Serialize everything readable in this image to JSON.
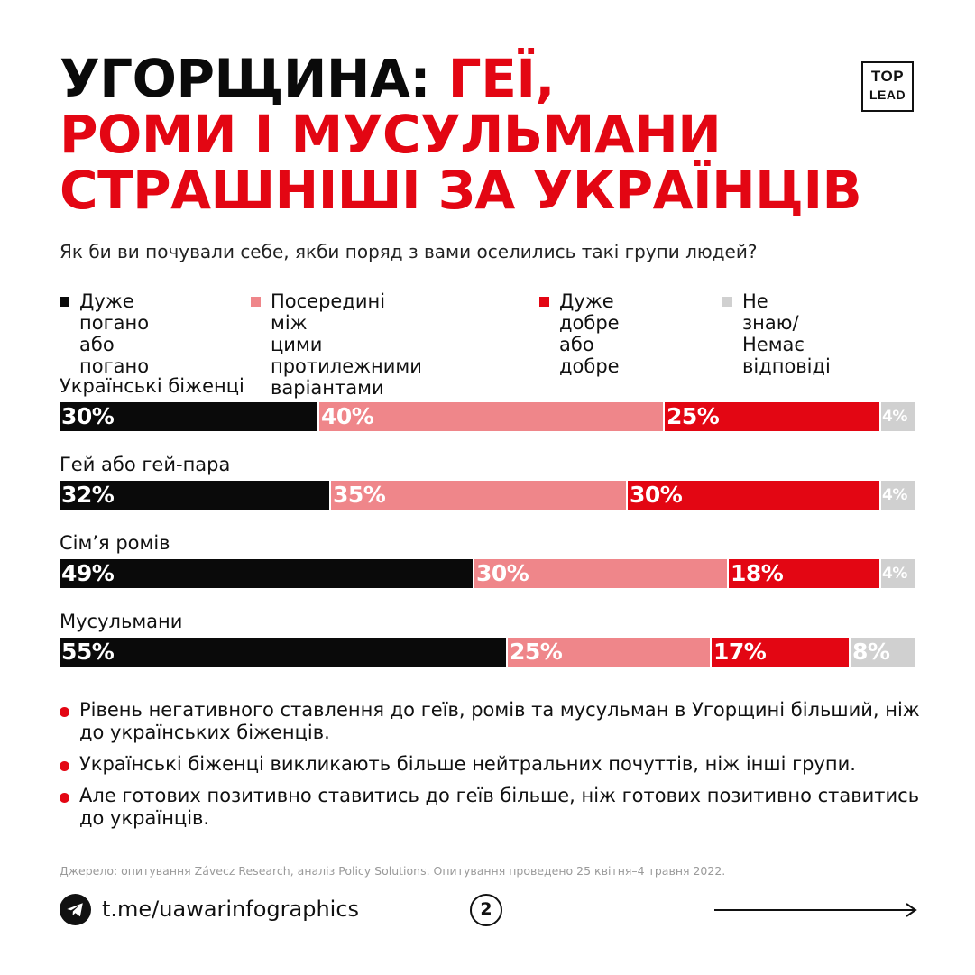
{
  "title": {
    "part1": "УГОРЩИНА:",
    "part2": "ГЕЇ,",
    "line2": "РОМИ І МУСУЛЬМАНИ",
    "line3": "СТРАШНІШІ ЗА УКРАЇНЦІВ"
  },
  "logo": {
    "line1": "TOP",
    "line2": "LEAD"
  },
  "subtitle": "Як би ви почували себе, якби поряд з вами оселились такі групи людей?",
  "colors": {
    "black": "#0a0a0a",
    "pink": "#ef868a",
    "red": "#e30613",
    "gray": "#d0d0d0",
    "accent": "#e30613"
  },
  "chart_data": {
    "type": "bar",
    "orientation": "horizontal",
    "stacked": true,
    "unit": "%",
    "title": "Як би ви почували себе, якби поряд з вами оселились такі групи людей?",
    "categories": [
      "Українські біженці",
      "Гей або гей-пара",
      "Сім’я ромів",
      "Мусульмани"
    ],
    "series": [
      {
        "name": "Дуже погано\nабо погано",
        "color": "#0a0a0a",
        "values": [
          30,
          32,
          49,
          55
        ]
      },
      {
        "name": "Посередині між\nцими протилежними\nваріантами",
        "color": "#ef868a",
        "values": [
          40,
          35,
          30,
          25
        ]
      },
      {
        "name": "Дуже добре\nабо добре",
        "color": "#e30613",
        "values": [
          25,
          30,
          18,
          17
        ]
      },
      {
        "name": "Не знаю/\nНемає відповіді",
        "color": "#d0d0d0",
        "values": [
          4,
          4,
          4,
          8
        ]
      }
    ],
    "legend_position": "top"
  },
  "notes": [
    "Рівень негативного ставлення до геїв, ромів та мусульман в Угорщині більший, ніж до українських біженців.",
    "Українські біженці викликають більше нейтральних почуттів, ніж інші групи.",
    "Але готових позитивно ставитись до геїв більше, ніж готових позитивно ставитись до українців."
  ],
  "source": "Джерело: опитування Závecz Research, аналіз Policy Solutions. Опитування проведено 25 квітня–4 травня 2022.",
  "footer": {
    "link": "t.me/uawarinfographics",
    "page": "2",
    "icon": "telegram-icon"
  }
}
